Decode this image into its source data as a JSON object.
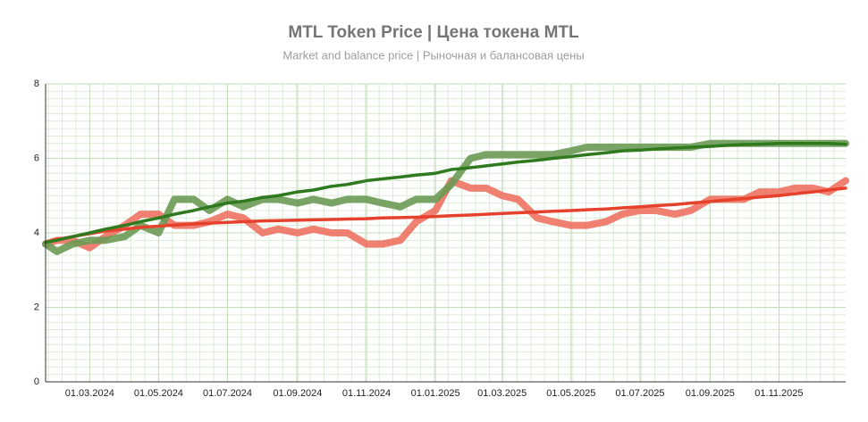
{
  "chart_data": {
    "type": "line",
    "title": "MTL Token Price | Цена токена MTL",
    "subtitle": "Market and balance price | Рыночная и балансовая цены",
    "x": [
      "2024-01-22",
      "2024-02-01",
      "2024-02-15",
      "2024-03-01",
      "2024-03-15",
      "2024-04-01",
      "2024-04-15",
      "2024-05-01",
      "2024-05-15",
      "2024-06-01",
      "2024-06-15",
      "2024-07-01",
      "2024-07-15",
      "2024-08-01",
      "2024-08-15",
      "2024-09-01",
      "2024-09-15",
      "2024-10-01",
      "2024-10-15",
      "2024-11-01",
      "2024-11-15",
      "2024-12-01",
      "2024-12-15",
      "2025-01-01",
      "2025-01-15",
      "2025-02-01",
      "2025-02-15",
      "2025-03-01",
      "2025-03-15",
      "2025-04-01",
      "2025-04-15",
      "2025-05-01",
      "2025-05-15",
      "2025-06-01",
      "2025-06-15",
      "2025-07-01",
      "2025-07-15",
      "2025-08-01",
      "2025-08-15",
      "2025-09-01",
      "2025-09-15",
      "2025-10-01",
      "2025-10-15",
      "2025-11-01",
      "2025-11-15",
      "2025-12-01",
      "2025-12-15",
      "2025-12-30"
    ],
    "series": [
      {
        "color": "#6b9a55",
        "values": [
          3.7,
          3.5,
          3.7,
          3.8,
          3.8,
          3.9,
          4.2,
          4.0,
          4.9,
          4.9,
          4.6,
          4.9,
          4.7,
          4.9,
          4.9,
          4.8,
          4.9,
          4.8,
          4.9,
          4.9,
          4.8,
          4.7,
          4.9,
          4.9,
          5.3,
          6.0,
          6.1,
          6.1,
          6.1,
          6.1,
          6.1,
          6.2,
          6.3,
          6.3,
          6.3,
          6.3,
          6.3,
          6.3,
          6.3,
          6.4,
          6.4,
          6.4,
          6.4,
          6.4,
          6.4,
          6.4,
          6.4,
          6.4
        ]
      },
      {
        "color": "#ee7262",
        "values": [
          3.7,
          3.8,
          3.8,
          3.6,
          3.9,
          4.2,
          4.5,
          4.5,
          4.2,
          4.2,
          4.3,
          4.5,
          4.4,
          4.0,
          4.1,
          4.0,
          4.1,
          4.0,
          4.0,
          3.7,
          3.7,
          3.8,
          4.3,
          4.6,
          5.4,
          5.2,
          5.2,
          5.0,
          4.9,
          4.4,
          4.3,
          4.2,
          4.2,
          4.3,
          4.5,
          4.6,
          4.6,
          4.5,
          4.6,
          4.9,
          4.9,
          4.9,
          5.1,
          5.1,
          5.2,
          5.2,
          5.1,
          5.4
        ]
      },
      {
        "color": "#2f7a1f",
        "values": [
          3.75,
          3.8,
          3.9,
          4.0,
          4.1,
          4.2,
          4.3,
          4.4,
          4.5,
          4.6,
          4.7,
          4.8,
          4.85,
          4.95,
          5.0,
          5.1,
          5.15,
          5.25,
          5.3,
          5.4,
          5.45,
          5.5,
          5.55,
          5.6,
          5.7,
          5.75,
          5.8,
          5.85,
          5.9,
          5.95,
          6.0,
          6.05,
          6.1,
          6.15,
          6.2,
          6.22,
          6.25,
          6.28,
          6.3,
          6.32,
          6.35,
          6.37,
          6.38,
          6.4,
          6.4,
          6.4,
          6.4,
          6.38
        ]
      },
      {
        "color": "#e6412c",
        "values": [
          3.75,
          3.82,
          3.9,
          3.98,
          4.05,
          4.1,
          4.15,
          4.18,
          4.21,
          4.24,
          4.26,
          4.28,
          4.3,
          4.32,
          4.33,
          4.34,
          4.35,
          4.36,
          4.37,
          4.38,
          4.4,
          4.41,
          4.42,
          4.44,
          4.46,
          4.48,
          4.5,
          4.52,
          4.54,
          4.56,
          4.58,
          4.6,
          4.62,
          4.64,
          4.67,
          4.7,
          4.73,
          4.76,
          4.8,
          4.84,
          4.88,
          4.92,
          4.96,
          5.0,
          5.05,
          5.1,
          5.15,
          5.2
        ]
      }
    ],
    "xlim": [
      "2024-01-22",
      "2025-12-30"
    ],
    "xticks": [
      {
        "value": "2024-03-01",
        "label": "01.03.2024"
      },
      {
        "value": "2024-05-01",
        "label": "01.05.2024"
      },
      {
        "value": "2024-07-01",
        "label": "01.07.2024"
      },
      {
        "value": "2024-09-01",
        "label": "01.09.2024"
      },
      {
        "value": "2024-11-01",
        "label": "01.11.2024"
      },
      {
        "value": "2025-01-01",
        "label": "01.01.2025"
      },
      {
        "value": "2025-03-01",
        "label": "01.03.2025"
      },
      {
        "value": "2025-05-01",
        "label": "01.05.2025"
      },
      {
        "value": "2025-07-01",
        "label": "01.07.2025"
      },
      {
        "value": "2025-09-01",
        "label": "01.09.2025"
      },
      {
        "value": "2025-11-01",
        "label": "01.11.2025"
      }
    ],
    "ylim": [
      0,
      8
    ],
    "yticks": [
      0,
      2,
      4,
      6,
      8
    ],
    "grid": true,
    "minor_grid": true
  }
}
